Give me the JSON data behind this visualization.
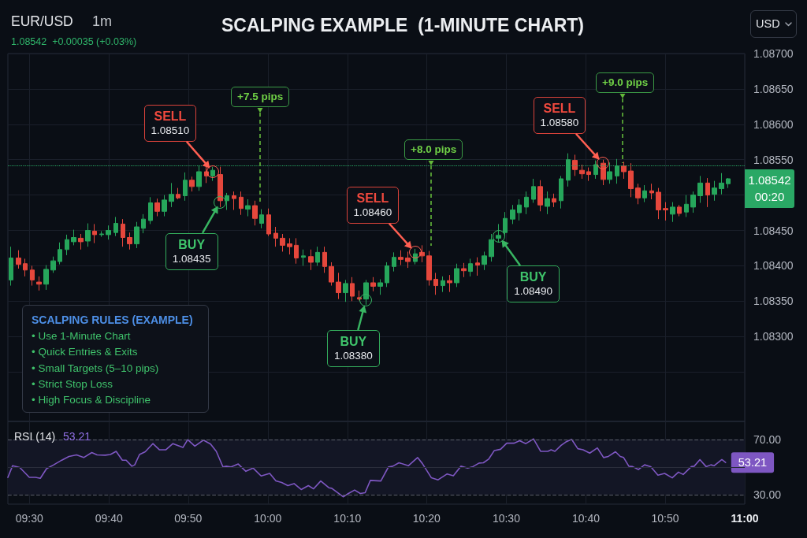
{
  "chart_data": [
    {
      "type": "candlestick",
      "title": "SCALPING EXAMPLE  (1-MINUTE CHART)",
      "annotations": [
        "EUR/USD",
        "1m",
        "1.08542  +0.00035 (+0.03%)",
        "USD",
        "SCALPING RULES (EXAMPLE)",
        "• Use 1-Minute Chart",
        "• Quick Entries & Exits",
        "• Small Targets (5–10 pips)",
        "• Strict Stop Loss",
        "• High Focus & Discipline",
        "+7.5 pips",
        "+8.0 pips",
        "SELL\n1.08510",
        "SELL\n1.08460",
        "SELL\n1.08580",
        {
          "text": "BUY\n1.08435",
          "x": 9.9,
          "y": 1.0849
        },
        {
          "text": "BUY\n1.08380",
          "x": 10.206,
          "y": 1.08351
        },
        {
          "text": "BUY\n1.08490",
          "x": 10.484,
          "y": 1.08442
        },
        {
          "text": "+9.0 pips",
          "x": 10.744,
          "y": 1.08545
        }
      ],
      "x": [
        9.462,
        9.477,
        9.491,
        9.506,
        9.52,
        9.535,
        9.55,
        9.564,
        9.579,
        9.593,
        9.608,
        9.623,
        9.637,
        9.652,
        9.666,
        9.681,
        9.696,
        9.71,
        9.725,
        9.739,
        9.754,
        9.768,
        9.783,
        9.798,
        9.812,
        9.827,
        9.841,
        9.856,
        9.871,
        9.885,
        9.9,
        9.914,
        9.929,
        9.944,
        9.958,
        9.973,
        9.987,
        10.002,
        10.017,
        10.031,
        10.046,
        10.06,
        10.075,
        10.09,
        10.104,
        10.119,
        10.133,
        10.148,
        10.163,
        10.177,
        10.192,
        10.206,
        10.221,
        10.236,
        10.25,
        10.265,
        10.279,
        10.294,
        10.309,
        10.323,
        10.338,
        10.352,
        10.367,
        10.381,
        10.396,
        10.411,
        10.425,
        10.44,
        10.454,
        10.469,
        10.484,
        10.498,
        10.513,
        10.527,
        10.542,
        10.557,
        10.571,
        10.586,
        10.6,
        10.615,
        10.63,
        10.644,
        10.659,
        10.673,
        10.688,
        10.703,
        10.717,
        10.732,
        10.746,
        10.761,
        10.776,
        10.79,
        10.805,
        10.819,
        10.834,
        10.849,
        10.863,
        10.878,
        10.892,
        10.907,
        10.922,
        10.936,
        10.951,
        10.965
      ],
      "ohlc": [
        [
          1.0838,
          1.08427,
          1.08372,
          1.08411
        ],
        [
          1.08411,
          1.08422,
          1.08396,
          1.08402
        ],
        [
          1.08403,
          1.0841,
          1.08385,
          1.08394
        ],
        [
          1.08394,
          1.084,
          1.08372,
          1.0838
        ],
        [
          1.08377,
          1.08385,
          1.08365,
          1.08374
        ],
        [
          1.08374,
          1.08401,
          1.08366,
          1.08395
        ],
        [
          1.08394,
          1.08413,
          1.0839,
          1.08407
        ],
        [
          1.08406,
          1.08433,
          1.08402,
          1.08423
        ],
        [
          1.08423,
          1.08444,
          1.08415,
          1.08437
        ],
        [
          1.08434,
          1.08451,
          1.08429,
          1.0844
        ],
        [
          1.08439,
          1.08445,
          1.08423,
          1.08434
        ],
        [
          1.08435,
          1.0846,
          1.08427,
          1.0845
        ],
        [
          1.08449,
          1.08459,
          1.08432,
          1.08444
        ],
        [
          1.08444,
          1.08449,
          1.08441,
          1.08445
        ],
        [
          1.08444,
          1.08457,
          1.08437,
          1.0845
        ],
        [
          1.08447,
          1.08469,
          1.08442,
          1.0846
        ],
        [
          1.08459,
          1.08466,
          1.08427,
          1.0844
        ],
        [
          1.0844,
          1.08447,
          1.08423,
          1.08431
        ],
        [
          1.08431,
          1.08462,
          1.08425,
          1.08455
        ],
        [
          1.08453,
          1.08473,
          1.08446,
          1.08466
        ],
        [
          1.08464,
          1.08497,
          1.08459,
          1.08489
        ],
        [
          1.08489,
          1.08495,
          1.0847,
          1.08477
        ],
        [
          1.08477,
          1.085,
          1.0847,
          1.08493
        ],
        [
          1.08491,
          1.08517,
          1.08483,
          1.08501
        ],
        [
          1.08501,
          1.0851,
          1.08494,
          1.08496
        ],
        [
          1.08499,
          1.08532,
          1.08492,
          1.08521
        ],
        [
          1.08521,
          1.08526,
          1.08505,
          1.08512
        ],
        [
          1.08512,
          1.08542,
          1.08506,
          1.08533
        ],
        [
          1.08533,
          1.0854,
          1.08517,
          1.08527
        ],
        [
          1.08527,
          1.0854,
          1.0852,
          1.08535
        ],
        [
          1.08529,
          1.0854,
          1.08483,
          1.08492
        ],
        [
          1.08492,
          1.08503,
          1.08479,
          1.08499
        ],
        [
          1.08499,
          1.08505,
          1.08479,
          1.08495
        ],
        [
          1.08497,
          1.08505,
          1.08472,
          1.08481
        ],
        [
          1.0848,
          1.08494,
          1.0847,
          1.08485
        ],
        [
          1.08485,
          1.08492,
          1.08457,
          1.08467
        ],
        [
          1.0846,
          1.0848,
          1.08453,
          1.08472
        ],
        [
          1.08472,
          1.08481,
          1.08442,
          1.08445
        ],
        [
          1.08446,
          1.08455,
          1.08427,
          1.08439
        ],
        [
          1.08439,
          1.08445,
          1.0842,
          1.08429
        ],
        [
          1.08431,
          1.08439,
          1.08416,
          1.08427
        ],
        [
          1.08429,
          1.08439,
          1.08403,
          1.08411
        ],
        [
          1.08412,
          1.08423,
          1.084,
          1.08414
        ],
        [
          1.08413,
          1.08423,
          1.08394,
          1.08405
        ],
        [
          1.08405,
          1.08427,
          1.084,
          1.08419
        ],
        [
          1.08419,
          1.08427,
          1.0839,
          1.08399
        ],
        [
          1.08399,
          1.08405,
          1.08372,
          1.08377
        ],
        [
          1.08377,
          1.0839,
          1.08353,
          1.08362
        ],
        [
          1.08362,
          1.0838,
          1.08349,
          1.08375
        ],
        [
          1.08375,
          1.08384,
          1.0835,
          1.08357
        ],
        [
          1.08355,
          1.08365,
          1.08351,
          1.08353
        ],
        [
          1.08353,
          1.0838,
          1.08345,
          1.08376
        ],
        [
          1.08376,
          1.08384,
          1.08364,
          1.08371
        ],
        [
          1.08371,
          1.08381,
          1.08359,
          1.08376
        ],
        [
          1.08376,
          1.08405,
          1.0837,
          1.084
        ],
        [
          1.08399,
          1.08419,
          1.08392,
          1.08412
        ],
        [
          1.08412,
          1.08422,
          1.08401,
          1.08409
        ],
        [
          1.08411,
          1.0842,
          1.08397,
          1.08406
        ],
        [
          1.08406,
          1.08424,
          1.08402,
          1.08417
        ],
        [
          1.08419,
          1.08429,
          1.08405,
          1.08414
        ],
        [
          1.08414,
          1.08421,
          1.08372,
          1.0838
        ],
        [
          1.08381,
          1.0839,
          1.08359,
          1.08372
        ],
        [
          1.08372,
          1.08385,
          1.08363,
          1.08379
        ],
        [
          1.08379,
          1.08387,
          1.08363,
          1.08376
        ],
        [
          1.08376,
          1.08403,
          1.0837,
          1.08396
        ],
        [
          1.08396,
          1.08404,
          1.08384,
          1.08393
        ],
        [
          1.08392,
          1.0841,
          1.08385,
          1.08403
        ],
        [
          1.08404,
          1.08412,
          1.08386,
          1.08401
        ],
        [
          1.08402,
          1.0842,
          1.08394,
          1.08414
        ],
        [
          1.08413,
          1.08445,
          1.08406,
          1.08437
        ],
        [
          1.08439,
          1.08459,
          1.08433,
          1.08443
        ],
        [
          1.08447,
          1.08476,
          1.08442,
          1.08467
        ],
        [
          1.08466,
          1.08486,
          1.08459,
          1.08479
        ],
        [
          1.08475,
          1.08494,
          1.08464,
          1.08486
        ],
        [
          1.08483,
          1.08505,
          1.08473,
          1.08497
        ],
        [
          1.08494,
          1.08523,
          1.08489,
          1.08512
        ],
        [
          1.08512,
          1.08521,
          1.08477,
          1.08486
        ],
        [
          1.08484,
          1.08505,
          1.08473,
          1.08495
        ],
        [
          1.08495,
          1.08502,
          1.08483,
          1.0849
        ],
        [
          1.08492,
          1.08527,
          1.08481,
          1.08523
        ],
        [
          1.08521,
          1.08559,
          1.08512,
          1.0855
        ],
        [
          1.08549,
          1.08557,
          1.08527,
          1.08536
        ],
        [
          1.08535,
          1.08543,
          1.08523,
          1.0853
        ],
        [
          1.08533,
          1.08539,
          1.0852,
          1.08529
        ],
        [
          1.08529,
          1.08549,
          1.08523,
          1.08543
        ],
        [
          1.08545,
          1.0855,
          1.08514,
          1.08522
        ],
        [
          1.08522,
          1.08546,
          1.08516,
          1.08533
        ],
        [
          1.08527,
          1.08551,
          1.08516,
          1.08541
        ],
        [
          1.08541,
          1.08547,
          1.08523,
          1.08533
        ],
        [
          1.08534,
          1.08545,
          1.08497,
          1.08509
        ],
        [
          1.0851,
          1.08516,
          1.08487,
          1.08496
        ],
        [
          1.08496,
          1.08514,
          1.0849,
          1.08506
        ],
        [
          1.08506,
          1.08516,
          1.08494,
          1.08503
        ],
        [
          1.08504,
          1.0851,
          1.08466,
          1.08479
        ],
        [
          1.08481,
          1.0849,
          1.08464,
          1.08479
        ],
        [
          1.08473,
          1.0849,
          1.08462,
          1.08483
        ],
        [
          1.08483,
          1.08486,
          1.0847,
          1.08474
        ],
        [
          1.08476,
          1.085,
          1.08469,
          1.08487
        ],
        [
          1.08483,
          1.08505,
          1.08475,
          1.085
        ],
        [
          1.08499,
          1.08527,
          1.08489,
          1.08517
        ],
        [
          1.08517,
          1.08524,
          1.08483,
          1.085
        ],
        [
          1.08501,
          1.0852,
          1.08492,
          1.0851
        ],
        [
          1.08509,
          1.08531,
          1.08501,
          1.08517
        ],
        [
          1.08516,
          1.08524,
          1.0851,
          1.08523
        ]
      ],
      "xlim": [
        9.455,
        11
      ],
      "xticks": [
        {
          "value": 9.5,
          "label": null
        },
        {
          "value": 9.667,
          "label": null
        },
        {
          "value": 9.833,
          "label": null
        },
        {
          "value": 10,
          "label": null
        },
        {
          "value": 10.167,
          "label": null
        },
        {
          "value": 10.333,
          "label": null
        },
        {
          "value": 10.5,
          "label": null
        },
        {
          "value": 10.667,
          "label": null
        },
        {
          "value": 10.833,
          "label": null
        },
        {
          "value": 11,
          "label": null
        }
      ],
      "ylim": [
        1.0818,
        1.087
      ],
      "yticks": [
        {
          "value": 1.087,
          "label": "1.08700"
        },
        {
          "value": 1.0865,
          "label": "1.08650"
        },
        {
          "value": 1.086,
          "label": "1.08600"
        },
        {
          "value": 1.0855,
          "label": "1.08550"
        },
        {
          "value": 1.085,
          "label": null
        },
        {
          "value": 1.0845,
          "label": "1.08450"
        },
        {
          "value": 1.084,
          "label": "1.08400"
        },
        {
          "value": 1.0835,
          "label": "1.08350"
        },
        {
          "value": 1.083,
          "label": "1.08300"
        },
        {
          "value": 1.0825,
          "label": null
        }
      ],
      "grid": true,
      "tick_labels": "y",
      "ref_lines": [
        {
          "axis": "y",
          "value": 1.08542,
          "label": "1.08542\n00:20",
          "color": "#2aa865",
          "line_style": "dotted"
        }
      ]
    },
    {
      "type": "line",
      "title": "RSI (14)",
      "annotations": [
        "53.21"
      ],
      "color": "#7e57c2",
      "marker": "none",
      "x": [
        9.455,
        9.465,
        9.48,
        9.5,
        9.513,
        9.523,
        9.536,
        9.551,
        9.568,
        9.583,
        9.599,
        9.614,
        9.631,
        9.642,
        9.659,
        9.67,
        9.682,
        9.695,
        9.703,
        9.715,
        9.721,
        9.731,
        9.743,
        9.759,
        9.773,
        9.786,
        9.801,
        9.822,
        9.832,
        9.847,
        9.865,
        9.88,
        9.892,
        9.906,
        9.913,
        9.923,
        9.938,
        9.954,
        9.969,
        9.986,
        10.004,
        10.017,
        10.029,
        10.042,
        10.055,
        10.07,
        10.085,
        10.096,
        10.111,
        10.128,
        10.134,
        10.158,
        10.169,
        10.182,
        10.194,
        10.204,
        10.215,
        10.237,
        10.253,
        10.262,
        10.275,
        10.295,
        10.314,
        10.324,
        10.343,
        10.357,
        10.376,
        10.389,
        10.405,
        10.419,
        10.43,
        10.443,
        10.452,
        10.463,
        10.475,
        10.488,
        10.501,
        10.516,
        10.528,
        10.541,
        10.557,
        10.572,
        10.587,
        10.594,
        10.602,
        10.615,
        10.625,
        10.637,
        10.65,
        10.661,
        10.675,
        10.691,
        10.704,
        10.714,
        10.729,
        10.739,
        10.746,
        10.757,
        10.765,
        10.777,
        10.79,
        10.803,
        10.818,
        10.832,
        10.848,
        10.861,
        10.871,
        10.888,
        10.894,
        10.906,
        10.919,
        10.929,
        10.936,
        10.952,
        10.96
      ],
      "values": [
        42.4,
        50.9,
        49.6,
        42.4,
        42.4,
        41.7,
        48.7,
        51.5,
        54.9,
        57.6,
        58.7,
        56.8,
        60.4,
        58.7,
        58.5,
        59.0,
        61.3,
        54.9,
        54.9,
        50.5,
        51.5,
        59.0,
        61.0,
        66.9,
        62.4,
        62.4,
        66.9,
        64.1,
        69.8,
        65.1,
        69.4,
        66.6,
        61.3,
        50.0,
        50.5,
        50.0,
        52.1,
        46.8,
        49.2,
        43.4,
        45.3,
        39.8,
        38.7,
        36.4,
        37.9,
        33.6,
        36.4,
        34.1,
        39.8,
        34.9,
        34.5,
        28.3,
        30.7,
        33.2,
        30.7,
        31.3,
        40.2,
        39.8,
        50.0,
        50.5,
        53.0,
        50.9,
        56.8,
        52.5,
        42.1,
        40.6,
        44.9,
        43.6,
        50.5,
        49.2,
        50.2,
        52.8,
        53.0,
        55.6,
        61.9,
        62.8,
        67.2,
        67.2,
        69.0,
        66.9,
        70.3,
        61.3,
        61.3,
        62.4,
        61.3,
        65.6,
        68.1,
        70.0,
        63.2,
        62.4,
        60.0,
        63.8,
        56.8,
        57.6,
        61.0,
        57.6,
        56.8,
        50.5,
        50.2,
        48.1,
        51.5,
        50.2,
        44.0,
        45.3,
        42.1,
        46.2,
        44.5,
        50.2,
        50.5,
        55.3,
        50.2,
        51.5,
        50.9,
        55.3,
        53.21
      ],
      "value_labels": [
        null,
        null,
        null,
        null,
        null,
        null,
        null,
        null,
        null,
        null,
        null,
        null,
        null,
        null,
        null,
        null,
        null,
        null,
        null,
        null,
        null,
        null,
        null,
        null,
        null,
        null,
        null,
        null,
        null,
        null,
        null,
        null,
        null,
        null,
        null,
        null,
        null,
        null,
        null,
        null,
        null,
        null,
        null,
        null,
        null,
        null,
        null,
        null,
        null,
        null,
        null,
        null,
        null,
        null,
        null,
        null,
        null,
        null,
        null,
        null,
        null,
        null,
        null,
        null,
        null,
        null,
        null,
        null,
        null,
        null,
        null,
        null,
        null,
        null,
        null,
        null,
        null,
        null,
        null,
        null,
        null,
        null,
        null,
        null,
        null,
        null,
        null,
        null,
        null,
        null,
        null,
        null,
        null,
        null,
        null,
        null,
        null,
        null,
        null,
        null,
        null,
        null,
        null,
        null,
        null,
        null,
        null,
        null,
        null,
        null,
        null,
        null,
        null,
        null,
        "53.21"
      ],
      "xlim": [
        9.455,
        11
      ],
      "xticks": [
        {
          "value": 9.5,
          "label": "09:30"
        },
        {
          "value": 9.667,
          "label": "09:40"
        },
        {
          "value": 9.833,
          "label": "09:50"
        },
        {
          "value": 10,
          "label": "10:00"
        },
        {
          "value": 10.167,
          "label": "10:10"
        },
        {
          "value": 10.333,
          "label": "10:20"
        },
        {
          "value": 10.5,
          "label": "10:30"
        },
        {
          "value": 10.667,
          "label": "10:40"
        },
        {
          "value": 10.833,
          "label": "10:50"
        },
        {
          "value": 11,
          "label": "11:00"
        }
      ],
      "ylim": [
        23,
        83
      ],
      "yticks": [
        {
          "value": 70,
          "label": "70.00"
        },
        {
          "value": 30,
          "label": "30.00"
        }
      ],
      "grid": "x",
      "ref_lines": [
        {
          "axis": "y",
          "value": 70,
          "color": "#5c606b",
          "line_style": "dashed"
        },
        {
          "axis": "y",
          "value": 30,
          "color": "#5c606b",
          "line_style": "dashed"
        },
        {
          "axis": "y",
          "value": 50,
          "color": "#2a2d3b"
        }
      ],
      "bands": [
        {
          "axis": "y",
          "from": 30,
          "to": 70,
          "color": "#131625"
        }
      ]
    }
  ]
}
